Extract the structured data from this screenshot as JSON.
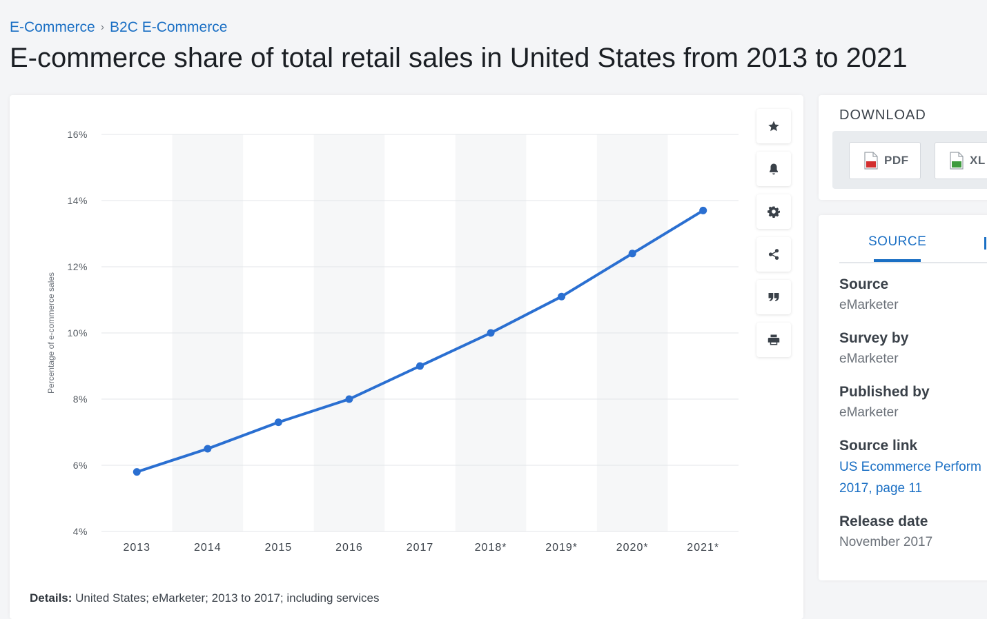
{
  "breadcrumb": {
    "items": [
      "E-Commerce",
      "B2C E-Commerce"
    ],
    "separator": "›"
  },
  "title": "E-commerce share of total retail sales in United States from 2013 to 2021",
  "chart_data": {
    "type": "line",
    "categories": [
      "2013",
      "2014",
      "2015",
      "2016",
      "2017",
      "2018*",
      "2019*",
      "2020*",
      "2021*"
    ],
    "series": [
      {
        "values": [
          5.8,
          6.5,
          7.3,
          8.0,
          9.0,
          10.0,
          11.1,
          12.4,
          13.7
        ]
      }
    ],
    "title": "",
    "xlabel": "",
    "ylabel": "Percentage of e-commerce sales",
    "ylim": [
      4,
      16
    ],
    "yticks": [
      4,
      6,
      8,
      10,
      12,
      14,
      16
    ],
    "ytick_suffix": "%",
    "grid": true,
    "color": "#2a6fd1"
  },
  "tools": {
    "items": [
      {
        "name": "star-icon"
      },
      {
        "name": "bell-icon"
      },
      {
        "name": "gear-icon"
      },
      {
        "name": "share-icon"
      },
      {
        "name": "quote-icon"
      },
      {
        "name": "print-icon"
      }
    ]
  },
  "details": {
    "label": "Details:",
    "text": "United States; eMarketer; 2013 to 2017; including services"
  },
  "download": {
    "title": "DOWNLOAD",
    "pdf_label": "PDF",
    "xls_label": "XL"
  },
  "source_panel": {
    "tab_label": "SOURCE",
    "source_label": "Source",
    "source_value": "eMarketer",
    "survey_label": "Survey by",
    "survey_value": "eMarketer",
    "published_label": "Published by",
    "published_value": "eMarketer",
    "link_label": "Source link",
    "link_line1": "US Ecommerce Perform",
    "link_line2": "2017, page 11",
    "release_label": "Release date",
    "release_value": "November 2017"
  }
}
